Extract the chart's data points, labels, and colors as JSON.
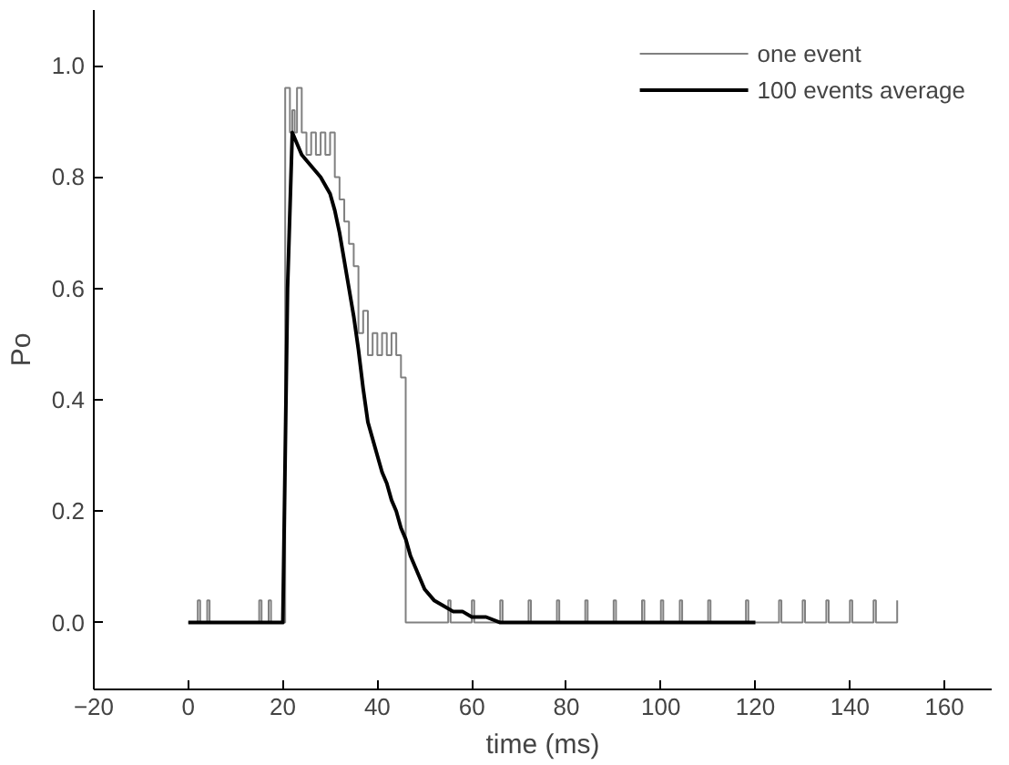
{
  "chart_data": {
    "type": "step",
    "xlabel": "time (ms)",
    "ylabel": "Po",
    "xlim": [
      -20,
      170
    ],
    "ylim": [
      -0.12,
      1.1
    ],
    "xticks": [
      -20,
      0,
      20,
      40,
      60,
      80,
      100,
      120,
      140,
      160
    ],
    "yticks": [
      {
        "value": 0,
        "label": "0.0"
      },
      {
        "value": 0.2,
        "label": "0.2"
      },
      {
        "value": 0.4,
        "label": "0.4"
      },
      {
        "value": 0.6,
        "label": "0.6"
      },
      {
        "value": 0.8,
        "label": "0.8"
      },
      {
        "value": 1,
        "label": "1.0"
      }
    ],
    "legend": "top right",
    "grid": false,
    "series": [
      {
        "name": "one event",
        "color": "#808080",
        "x": [
          0,
          2,
          2.5,
          4,
          4.5,
          15,
          15.5,
          17,
          17.5,
          20.5,
          21.5,
          22,
          22.5,
          23,
          24,
          25,
          26,
          27,
          28,
          29,
          30,
          31,
          32,
          33,
          34,
          35,
          36,
          37,
          38,
          39,
          40,
          41,
          42,
          43,
          44,
          45,
          46,
          55,
          55.5,
          60,
          60.5,
          66,
          66.5,
          72,
          72.5,
          78,
          78.5,
          84,
          84.5,
          90,
          90.5,
          96,
          96.5,
          100,
          100.5,
          104,
          104.5,
          110,
          110.5,
          118,
          118.5,
          125,
          125.5,
          130,
          130.5,
          135,
          135.5,
          140,
          140.5,
          145,
          145.5,
          150
        ],
        "values": [
          0,
          0.04,
          0,
          0.04,
          0,
          0.04,
          0,
          0.04,
          0,
          0.96,
          0.88,
          0.92,
          0.88,
          0.96,
          0.88,
          0.84,
          0.88,
          0.84,
          0.88,
          0.84,
          0.88,
          0.8,
          0.76,
          0.72,
          0.68,
          0.64,
          0.52,
          0.56,
          0.48,
          0.52,
          0.48,
          0.52,
          0.48,
          0.52,
          0.48,
          0.44,
          0,
          0.04,
          0,
          0.04,
          0,
          0.04,
          0,
          0.04,
          0,
          0.04,
          0,
          0.04,
          0,
          0.04,
          0,
          0.04,
          0,
          0.04,
          0,
          0.04,
          0,
          0.04,
          0,
          0.04,
          0,
          0.04,
          0,
          0.04,
          0,
          0.04,
          0,
          0.04,
          0,
          0.04,
          0,
          0.04
        ]
      },
      {
        "name": "100 events average",
        "type": "line",
        "color": "#000000",
        "x": [
          0,
          10,
          20,
          21,
          22,
          24,
          26,
          28,
          30,
          31,
          32,
          33,
          34,
          35,
          36,
          37,
          38,
          39,
          40,
          41,
          42,
          43,
          44,
          45,
          46,
          47,
          48,
          49,
          50,
          52,
          54,
          56,
          58,
          60,
          63,
          66,
          70,
          80,
          90,
          100,
          110,
          120
        ],
        "values": [
          0,
          0,
          0,
          0.6,
          0.88,
          0.84,
          0.82,
          0.8,
          0.77,
          0.74,
          0.7,
          0.65,
          0.6,
          0.55,
          0.49,
          0.42,
          0.36,
          0.33,
          0.3,
          0.27,
          0.25,
          0.22,
          0.2,
          0.17,
          0.15,
          0.12,
          0.1,
          0.08,
          0.06,
          0.04,
          0.03,
          0.02,
          0.02,
          0.01,
          0.01,
          0,
          0,
          0,
          0,
          0,
          0,
          0
        ]
      }
    ]
  }
}
